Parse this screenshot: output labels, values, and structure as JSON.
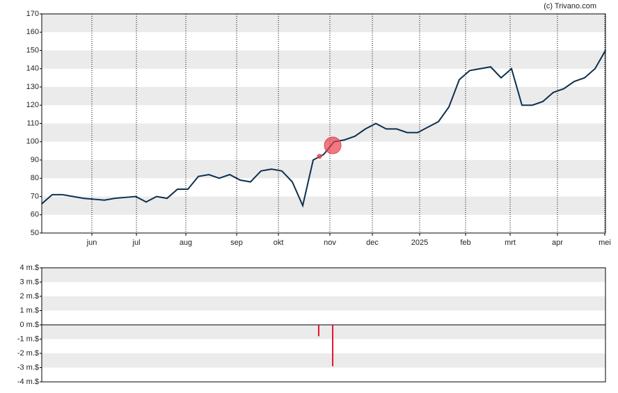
{
  "credit": "(c) Trivano.com",
  "chart_data": [
    {
      "type": "line",
      "xlim": [
        0,
        54
      ],
      "xticks": [
        {
          "value": 4.8,
          "label": "jun"
        },
        {
          "value": 9.07,
          "label": "jul"
        },
        {
          "value": 13.8,
          "label": "aug"
        },
        {
          "value": 18.67,
          "label": "sep"
        },
        {
          "value": 22.67,
          "label": "okt"
        },
        {
          "value": 27.6,
          "label": "nov"
        },
        {
          "value": 31.67,
          "label": "dec"
        },
        {
          "value": 36.2,
          "label": "2025"
        },
        {
          "value": 40.6,
          "label": "feb"
        },
        {
          "value": 44.87,
          "label": "mrt"
        },
        {
          "value": 49.4,
          "label": "apr"
        },
        {
          "value": 53.93,
          "label": "mei"
        }
      ],
      "ylim": [
        50,
        170
      ],
      "yticks": [
        50,
        60,
        70,
        80,
        90,
        100,
        110,
        120,
        130,
        140,
        150,
        160,
        170
      ],
      "grid": true,
      "series": [
        {
          "color": "#0d2f4f",
          "values": [
            66,
            71,
            71,
            70,
            69,
            68.5,
            68,
            69,
            69.5,
            70,
            67,
            70,
            69,
            74,
            74,
            81,
            82,
            80,
            82,
            79,
            78,
            84,
            85,
            84,
            78,
            65,
            90,
            93,
            100,
            101,
            103,
            107,
            110,
            107,
            107,
            105,
            105,
            108,
            111,
            119,
            134,
            139,
            140,
            141,
            135,
            140,
            120,
            120,
            122,
            127,
            129,
            133,
            135,
            140,
            150
          ]
        }
      ],
      "markers": {
        "color": "#e8424f",
        "x": [
          26.6,
          27.87
        ],
        "values": [
          92,
          98
        ]
      }
    },
    {
      "type": "bar",
      "xlim": [
        0,
        54
      ],
      "x": [
        26.53,
        27.87
      ],
      "values": [
        -0.8,
        -2.9
      ],
      "color": "#e0142c",
      "ylim": [
        -4,
        4
      ],
      "yticks": [
        {
          "value": 4,
          "label": "4 m.$"
        },
        {
          "value": 3,
          "label": "3 m.$"
        },
        {
          "value": 2,
          "label": "2 m.$"
        },
        {
          "value": 1,
          "label": "1 m.$"
        },
        {
          "value": 0,
          "label": "0 m.$"
        },
        {
          "value": -1,
          "label": "-1 m.$"
        },
        {
          "value": -2,
          "label": "-2 m.$"
        },
        {
          "value": -3,
          "label": "-3 m.$"
        },
        {
          "value": -4,
          "label": "-4 m.$"
        }
      ],
      "grid": true
    }
  ]
}
